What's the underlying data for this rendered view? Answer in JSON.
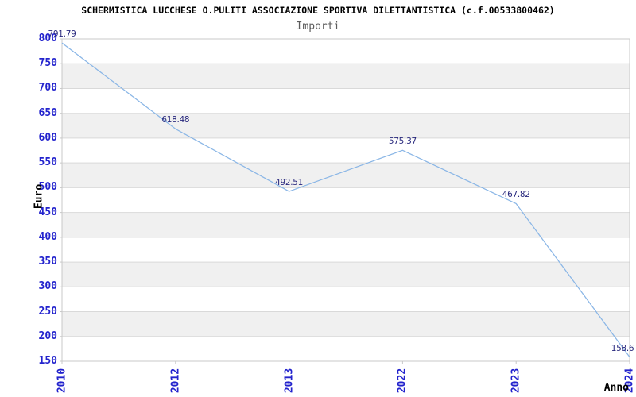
{
  "header": {
    "title": "SCHERMISTICA LUCCHESE O.PULITI ASSOCIAZIONE SPORTIVA DILETTANTISTICA (c.f.00533800462)",
    "subtitle": "Importi"
  },
  "chart_data": {
    "type": "line",
    "title": "SCHERMISTICA LUCCHESE O.PULITI ASSOCIAZIONE SPORTIVA DILETTANTISTICA (c.f.00533800462)",
    "subtitle": "Importi",
    "categories": [
      "2010",
      "2012",
      "2013",
      "2022",
      "2023",
      "2024"
    ],
    "series": [
      {
        "name": "Importi",
        "values": [
          791.79,
          618.48,
          492.51,
          575.37,
          467.82,
          158.6
        ]
      }
    ],
    "point_labels": [
      "791.79",
      "618.48",
      "492.51",
      "575.37",
      "467.82",
      "158.6"
    ],
    "xlabel": "Anno",
    "ylabel": "Euro",
    "ylim": [
      150,
      800
    ],
    "ytick_step": 50,
    "grid": "horizontal",
    "alternating_bands": true,
    "legend": "none",
    "colors": {
      "line": "#8ab6e6",
      "point_label": "#28287d",
      "tick_label": "#2323cd",
      "band": "#f0f0f0",
      "grid_line": "#d9d9d9",
      "plot_border": "#c8c8c8",
      "title": "#000000",
      "subtitle": "#5c5c5c",
      "axis_title": "#000000"
    }
  }
}
